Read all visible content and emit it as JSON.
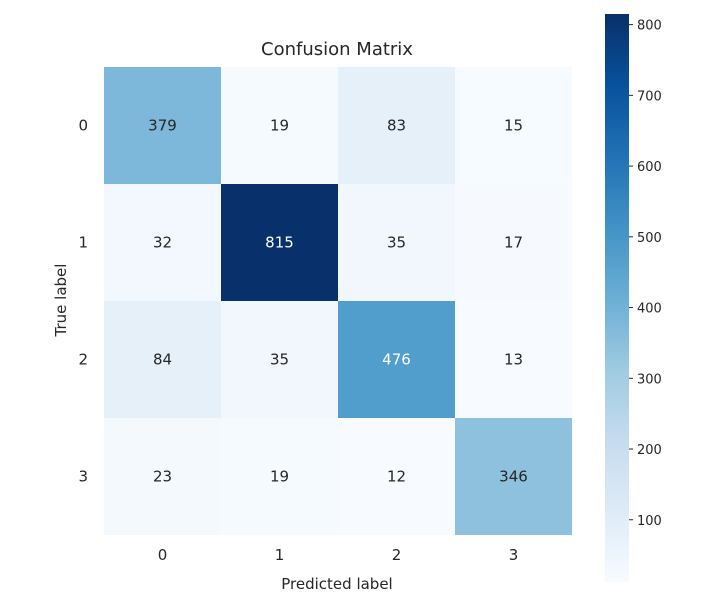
{
  "chart_data": {
    "type": "heatmap",
    "title": "Confusion Matrix",
    "xlabel": "Predicted label",
    "ylabel": "True label",
    "x_categories": [
      "0",
      "1",
      "2",
      "3"
    ],
    "y_categories": [
      "0",
      "1",
      "2",
      "3"
    ],
    "matrix": [
      [
        379,
        19,
        83,
        15
      ],
      [
        32,
        815,
        35,
        17
      ],
      [
        84,
        35,
        476,
        13
      ],
      [
        23,
        19,
        12,
        346
      ]
    ],
    "colormap": "Blues",
    "colormap_stops": [
      "#f7fbff",
      "#deebf7",
      "#c6dbef",
      "#9ecae1",
      "#6baed6",
      "#4292c6",
      "#2171b5",
      "#08519c",
      "#08306b"
    ],
    "value_range": [
      12,
      815
    ],
    "colorbar_ticks": [
      100,
      200,
      300,
      400,
      500,
      600,
      700,
      800
    ],
    "text_color_dark": "#262626",
    "text_color_light": "#ffffff",
    "grid": false
  }
}
